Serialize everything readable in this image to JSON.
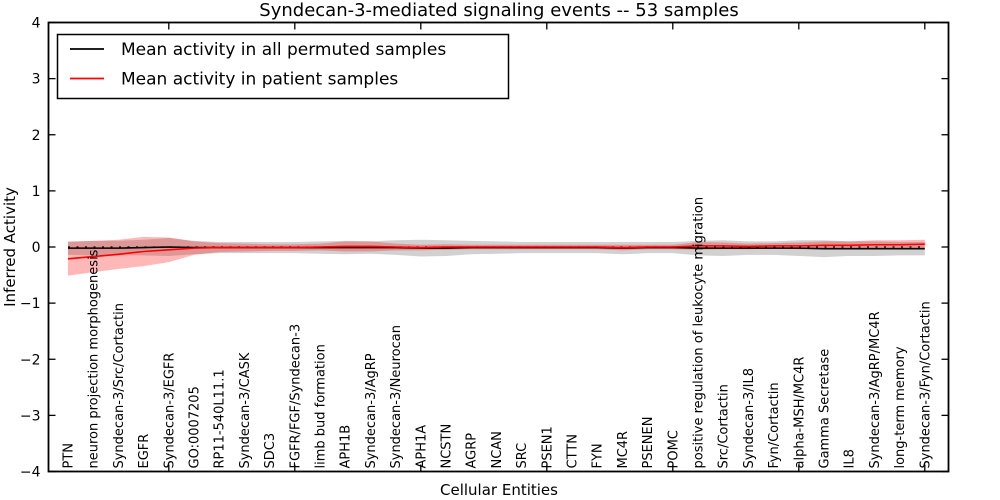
{
  "chart_data": {
    "type": "line",
    "title": "Syndecan-3-mediated signaling events -- 53 samples",
    "xlabel": "Cellular Entities",
    "ylabel": "Inferred Activity",
    "ylim": [
      -4,
      4
    ],
    "yticks": [
      -4,
      -3,
      -2,
      -1,
      0,
      1,
      2,
      3,
      4
    ],
    "top_tick_indices": [
      4,
      9,
      14,
      19,
      24,
      29,
      34
    ],
    "grid": false,
    "zero_reference_line": true,
    "legend": {
      "position": "upper left",
      "items": [
        {
          "label": "Mean activity in all permuted samples",
          "color": "#000000"
        },
        {
          "label": "Mean activity in patient samples",
          "color": "#ff0000"
        }
      ]
    },
    "categories": [
      "PTN",
      "neuron projection morphogenesis",
      "Syndecan-3/Src/Cortactin",
      "EGFR",
      "Syndecan-3/EGFR",
      "GO:0007205",
      "RP11-540L11.1",
      "Syndecan-3/CASK",
      "SDC3",
      "FGFR/FGF/Syndecan-3",
      "limb bud formation",
      "APH1B",
      "Syndecan-3/AgRP",
      "Syndecan-3/Neurocan",
      "APH1A",
      "NCSTN",
      "AGRP",
      "NCAN",
      "SRC",
      "PSEN1",
      "CTTN",
      "FYN",
      "MC4R",
      "PSENEN",
      "POMC",
      "positive regulation of leukocyte migration",
      "Src/Cortactin",
      "Syndecan-3/IL8",
      "Fyn/Cortactin",
      "alpha-MSH/MC4R",
      "Gamma Secretase",
      "IL8",
      "Syndecan-3/AgRP/MC4R",
      "long-term memory",
      "Syndecan-3/Fyn/Cortactin"
    ],
    "series": [
      {
        "name": "Mean activity in all permuted samples",
        "color": "#000000",
        "band_opacity": 0.18,
        "mean": [
          -0.02,
          -0.02,
          -0.02,
          -0.01,
          0.0,
          -0.01,
          -0.01,
          -0.01,
          -0.01,
          -0.01,
          -0.01,
          -0.01,
          -0.01,
          -0.01,
          -0.02,
          -0.02,
          -0.01,
          -0.01,
          -0.01,
          -0.01,
          -0.01,
          -0.01,
          -0.02,
          -0.01,
          -0.01,
          -0.02,
          -0.02,
          -0.02,
          -0.02,
          -0.02,
          -0.03,
          -0.03,
          -0.03,
          -0.03,
          -0.03
        ],
        "std": [
          0.12,
          0.13,
          0.13,
          0.14,
          0.16,
          0.12,
          0.1,
          0.1,
          0.1,
          0.1,
          0.11,
          0.12,
          0.11,
          0.13,
          0.15,
          0.14,
          0.12,
          0.11,
          0.1,
          0.1,
          0.1,
          0.1,
          0.11,
          0.1,
          0.1,
          0.13,
          0.14,
          0.12,
          0.12,
          0.14,
          0.15,
          0.13,
          0.13,
          0.12,
          0.12
        ]
      },
      {
        "name": "Mean activity in patient samples",
        "color": "#ff0000",
        "band_opacity": 0.28,
        "mean": [
          -0.21,
          -0.17,
          -0.13,
          -0.08,
          -0.05,
          -0.02,
          -0.01,
          -0.01,
          -0.01,
          -0.01,
          0.0,
          0.01,
          0.01,
          0.0,
          -0.01,
          0.0,
          0.0,
          0.0,
          0.0,
          0.0,
          0.0,
          0.0,
          -0.01,
          0.0,
          0.0,
          0.02,
          0.02,
          0.01,
          0.02,
          0.02,
          0.03,
          0.03,
          0.04,
          0.04,
          0.05
        ],
        "std": [
          0.3,
          0.28,
          0.26,
          0.26,
          0.22,
          0.12,
          0.08,
          0.07,
          0.06,
          0.06,
          0.06,
          0.09,
          0.09,
          0.06,
          0.05,
          0.05,
          0.04,
          0.04,
          0.04,
          0.04,
          0.04,
          0.04,
          0.05,
          0.04,
          0.04,
          0.07,
          0.06,
          0.05,
          0.05,
          0.06,
          0.07,
          0.07,
          0.08,
          0.08,
          0.08
        ]
      }
    ]
  }
}
